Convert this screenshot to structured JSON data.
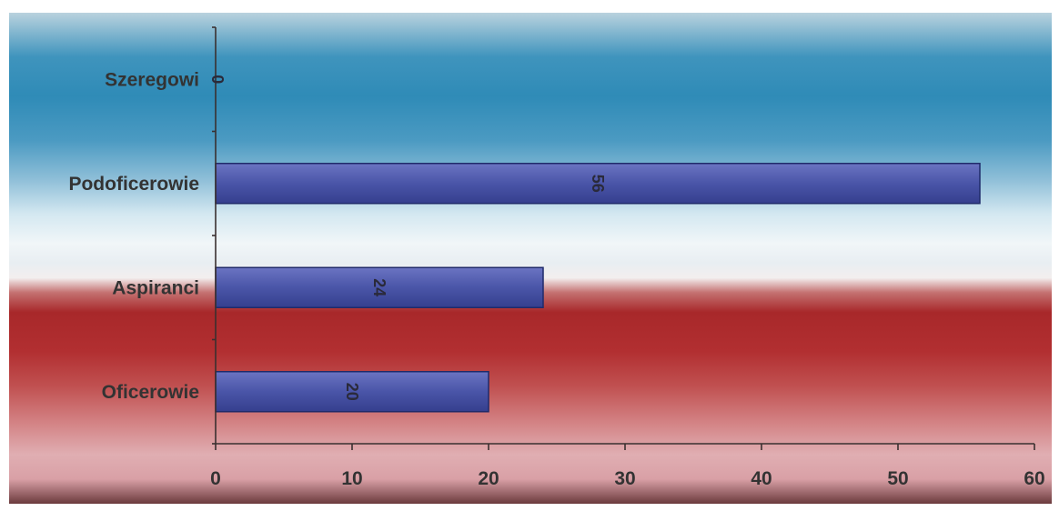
{
  "chart_data": {
    "type": "bar",
    "orientation": "horizontal",
    "categories": [
      "Szeregowi",
      "Podoficerowie",
      "Aspiranci",
      "Oficerowie"
    ],
    "values": [
      0,
      56,
      24,
      20
    ],
    "data_labels": [
      "0",
      "56",
      "24",
      "20"
    ],
    "xlim": [
      0,
      60
    ],
    "x_ticks": [
      0,
      10,
      20,
      30,
      40,
      50,
      60
    ],
    "x_tick_labels": [
      "0",
      "10",
      "20",
      "30",
      "40",
      "50",
      "60"
    ],
    "title": "",
    "xlabel": "",
    "ylabel": "",
    "grid": false,
    "legend": "none",
    "bar_color": "#4a55a8",
    "background": "blue-white-red gradient"
  }
}
